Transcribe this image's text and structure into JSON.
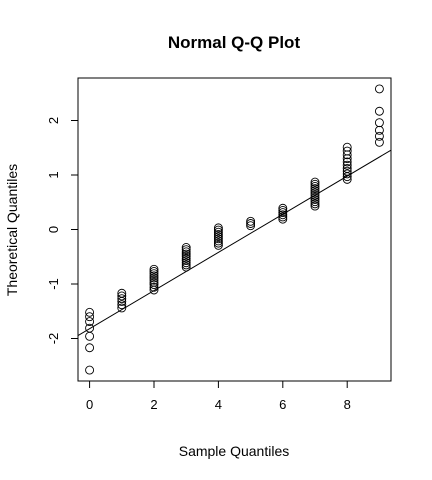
{
  "chart_data": {
    "type": "scatter",
    "title": "Normal Q-Q Plot",
    "xlabel": "Sample Quantiles",
    "ylabel": "Theoretical Quantiles",
    "xlim": [
      -0.36,
      9.36
    ],
    "ylim": [
      -2.78,
      2.78
    ],
    "x_ticks": [
      0,
      2,
      4,
      6,
      8
    ],
    "y_ticks": [
      -2,
      -1,
      0,
      1,
      2
    ],
    "grid": false,
    "point_color": "#000000",
    "line_color": "#000000",
    "reference_line": {
      "intercept": -1.82,
      "slope": 0.35
    },
    "points": [
      {
        "x": 0,
        "y": -2.58
      },
      {
        "x": 0,
        "y": -2.17
      },
      {
        "x": 0,
        "y": -1.96
      },
      {
        "x": 0,
        "y": -1.81
      },
      {
        "x": 0,
        "y": -1.69
      },
      {
        "x": 0,
        "y": -1.6
      },
      {
        "x": 0,
        "y": -1.52
      },
      {
        "x": 1,
        "y": -1.44
      },
      {
        "x": 1,
        "y": -1.38
      },
      {
        "x": 1,
        "y": -1.32
      },
      {
        "x": 1,
        "y": -1.27
      },
      {
        "x": 1,
        "y": -1.22
      },
      {
        "x": 1,
        "y": -1.17
      },
      {
        "x": 2,
        "y": -1.11
      },
      {
        "x": 2,
        "y": -1.06
      },
      {
        "x": 2,
        "y": -1.01
      },
      {
        "x": 2,
        "y": -0.97
      },
      {
        "x": 2,
        "y": -0.93
      },
      {
        "x": 2,
        "y": -0.89
      },
      {
        "x": 2,
        "y": -0.85
      },
      {
        "x": 2,
        "y": -0.81
      },
      {
        "x": 2,
        "y": -0.77
      },
      {
        "x": 2,
        "y": -0.73
      },
      {
        "x": 3,
        "y": -0.69
      },
      {
        "x": 3,
        "y": -0.65
      },
      {
        "x": 3,
        "y": -0.61
      },
      {
        "x": 3,
        "y": -0.57
      },
      {
        "x": 3,
        "y": -0.53
      },
      {
        "x": 3,
        "y": -0.49
      },
      {
        "x": 3,
        "y": -0.45
      },
      {
        "x": 3,
        "y": -0.41
      },
      {
        "x": 3,
        "y": -0.37
      },
      {
        "x": 3,
        "y": -0.33
      },
      {
        "x": 4,
        "y": -0.29
      },
      {
        "x": 4,
        "y": -0.25
      },
      {
        "x": 4,
        "y": -0.21
      },
      {
        "x": 4,
        "y": -0.17
      },
      {
        "x": 4,
        "y": -0.13
      },
      {
        "x": 4,
        "y": -0.09
      },
      {
        "x": 4,
        "y": -0.05
      },
      {
        "x": 4,
        "y": -0.01
      },
      {
        "x": 4,
        "y": 0.03
      },
      {
        "x": 5,
        "y": 0.07
      },
      {
        "x": 5,
        "y": 0.11
      },
      {
        "x": 5,
        "y": 0.15
      },
      {
        "x": 6,
        "y": 0.19
      },
      {
        "x": 6,
        "y": 0.23
      },
      {
        "x": 6,
        "y": 0.27
      },
      {
        "x": 6,
        "y": 0.31
      },
      {
        "x": 6,
        "y": 0.35
      },
      {
        "x": 6,
        "y": 0.39
      },
      {
        "x": 7,
        "y": 0.43
      },
      {
        "x": 7,
        "y": 0.47
      },
      {
        "x": 7,
        "y": 0.51
      },
      {
        "x": 7,
        "y": 0.55
      },
      {
        "x": 7,
        "y": 0.59
      },
      {
        "x": 7,
        "y": 0.63
      },
      {
        "x": 7,
        "y": 0.67
      },
      {
        "x": 7,
        "y": 0.71
      },
      {
        "x": 7,
        "y": 0.75
      },
      {
        "x": 7,
        "y": 0.79
      },
      {
        "x": 7,
        "y": 0.83
      },
      {
        "x": 7,
        "y": 0.87
      },
      {
        "x": 8,
        "y": 0.92
      },
      {
        "x": 8,
        "y": 0.97
      },
      {
        "x": 8,
        "y": 1.02
      },
      {
        "x": 8,
        "y": 1.07
      },
      {
        "x": 8,
        "y": 1.12
      },
      {
        "x": 8,
        "y": 1.18
      },
      {
        "x": 8,
        "y": 1.24
      },
      {
        "x": 8,
        "y": 1.3
      },
      {
        "x": 8,
        "y": 1.37
      },
      {
        "x": 8,
        "y": 1.44
      },
      {
        "x": 8,
        "y": 1.51
      },
      {
        "x": 9,
        "y": 1.6
      },
      {
        "x": 9,
        "y": 1.71
      },
      {
        "x": 9,
        "y": 1.82
      },
      {
        "x": 9,
        "y": 1.96
      },
      {
        "x": 9,
        "y": 2.17
      },
      {
        "x": 9,
        "y": 2.58
      }
    ]
  }
}
